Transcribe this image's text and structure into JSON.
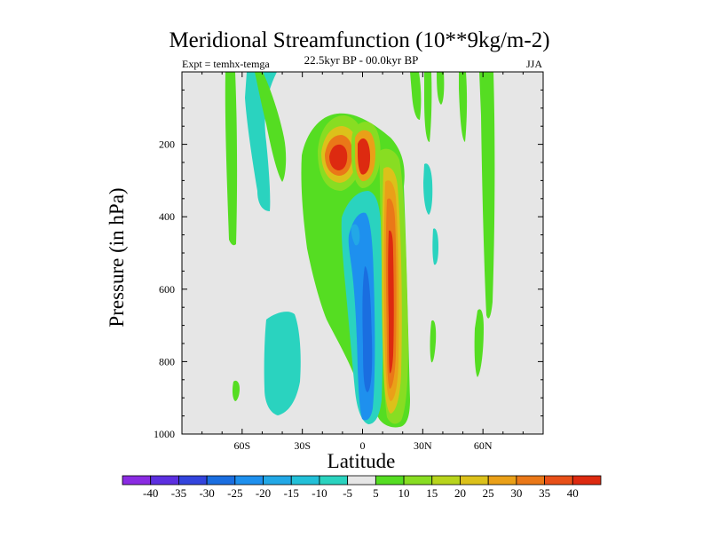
{
  "chart_data": {
    "type": "contour",
    "title": "Meridional Streamfunction (10**9kg/m-2)",
    "subtitle": "22.5kyr BP - 00.0kyr BP",
    "left_label": "Expt = temhx-temga",
    "right_label": "JJA",
    "xlabel": "Latitude",
    "ylabel": "Pressure (in hPa)",
    "xlim": [
      -90,
      90
    ],
    "ylim": [
      1000,
      0
    ],
    "x_ticks": [
      {
        "value": -60,
        "label": "60S"
      },
      {
        "value": -30,
        "label": "30S"
      },
      {
        "value": 0,
        "label": "0"
      },
      {
        "value": 30,
        "label": "30N"
      },
      {
        "value": 60,
        "label": "60N"
      }
    ],
    "y_ticks": [
      {
        "value": 200,
        "label": "200"
      },
      {
        "value": 400,
        "label": "400"
      },
      {
        "value": 600,
        "label": "600"
      },
      {
        "value": 800,
        "label": "800"
      },
      {
        "value": 1000,
        "label": "1000"
      }
    ],
    "background_color": "#e6e6e6",
    "colorbar": {
      "levels": [
        "-40",
        "-35",
        "-30",
        "-25",
        "-20",
        "-15",
        "-10",
        "-5",
        "5",
        "10",
        "15",
        "20",
        "25",
        "30",
        "35",
        "40"
      ],
      "colors": [
        "#8a2be2",
        "#5c2fe0",
        "#3344dd",
        "#1a6ee0",
        "#1e90ee",
        "#22a8e6",
        "#22c0d8",
        "#2ad3bf",
        "#e6e6e6",
        "#55dd22",
        "#88dd22",
        "#b8d41c",
        "#dcc11a",
        "#eaa018",
        "#ea7818",
        "#e85018",
        "#dd2a10"
      ]
    },
    "features": [
      {
        "name": "NH westerly cell green",
        "level": 10,
        "lat_min": 12,
        "lat_max": 20,
        "p_top": 150,
        "p_bottom": 970
      },
      {
        "name": "NH strong core",
        "level": 40,
        "lat_min": 13,
        "lat_max": 17,
        "p_top": 330,
        "p_bottom": 920
      },
      {
        "name": "Upper-level high near 10S",
        "level": 40,
        "lat_min": -15,
        "lat_max": -9,
        "p_top": 200,
        "p_bottom": 270
      },
      {
        "name": "Upper-level high near 0",
        "level": 40,
        "lat_min": -3,
        "lat_max": 1,
        "p_top": 170,
        "p_bottom": 260
      },
      {
        "name": "Equatorial negative tongue",
        "level": -30,
        "lat_min": 5,
        "lat_max": 10,
        "p_top": 250,
        "p_bottom": 970
      },
      {
        "name": "SH subtropical negative",
        "level": -20,
        "lat_min": -5,
        "lat_max": 0,
        "p_top": 380,
        "p_bottom": 520
      },
      {
        "name": "SH midlatitude negative",
        "level": -10,
        "lat_min": -42,
        "lat_max": -30,
        "p_top": 620,
        "p_bottom": 950
      },
      {
        "name": "SH high-latitude negative",
        "level": -10,
        "lat_min": -57,
        "lat_max": -45,
        "p_top": 0,
        "p_bottom": 340
      }
    ]
  }
}
